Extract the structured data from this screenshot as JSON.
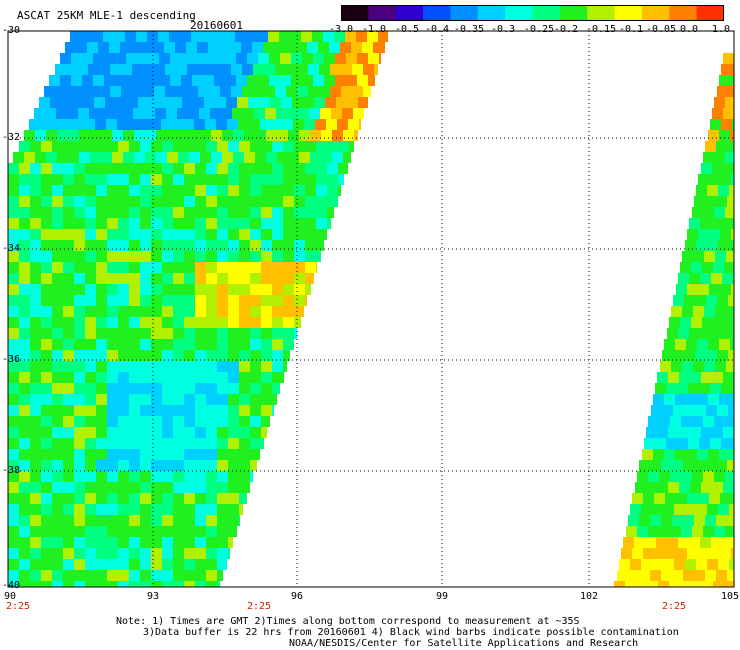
{
  "header": {
    "title": "ASCAT 25KM MLE-1 descending",
    "date": "20160601"
  },
  "colorbar": {
    "labels": [
      "-3.0",
      "-1.0",
      "-0.5",
      "-0.4",
      "-0.35",
      "-0.3",
      "-0.25",
      "-0.2",
      "-0.15",
      "-0.1",
      "-0.05",
      "0.0",
      "1.0"
    ],
    "colors": [
      "#1a0010",
      "#4b0080",
      "#3000d0",
      "#0050ff",
      "#0090ff",
      "#00d0ff",
      "#00ffe0",
      "#00ff80",
      "#20f020",
      "#b0f000",
      "#ffff00",
      "#ffc000",
      "#ff8000",
      "#ff3000"
    ]
  },
  "axes": {
    "lat_labels": [
      "-30",
      "-32",
      "-34",
      "-36",
      "-38",
      "-40"
    ],
    "lon_labels": [
      "90",
      "93",
      "96",
      "99",
      "102",
      "105"
    ],
    "time_labels": [
      "2:25",
      "2:25",
      "2:25"
    ]
  },
  "footer": {
    "note1": "Note: 1) Times are GMT 2)Times along bottom correspond to measurement at ~35S",
    "note2": "3)Data buffer is 22 hrs from 20160601 4) Black wind barbs indicate possible contamination",
    "credit": "NOAA/NESDIS/Center for Satellite Applications and Research"
  },
  "map": {
    "lat_range": [
      -40,
      -30
    ],
    "lon_range": [
      90,
      105
    ],
    "swaths": [
      {
        "name": "west",
        "colors": [
          "#20f020",
          "#00ffe0",
          "#00ff80",
          "#b0f000",
          "#ffff00",
          "#ffc000",
          "#ff8000",
          "#0090ff"
        ]
      },
      {
        "name": "east",
        "colors": [
          "#20f020",
          "#00ffe0",
          "#b0f000",
          "#ffff00",
          "#ffc000",
          "#ff8000"
        ]
      }
    ]
  }
}
